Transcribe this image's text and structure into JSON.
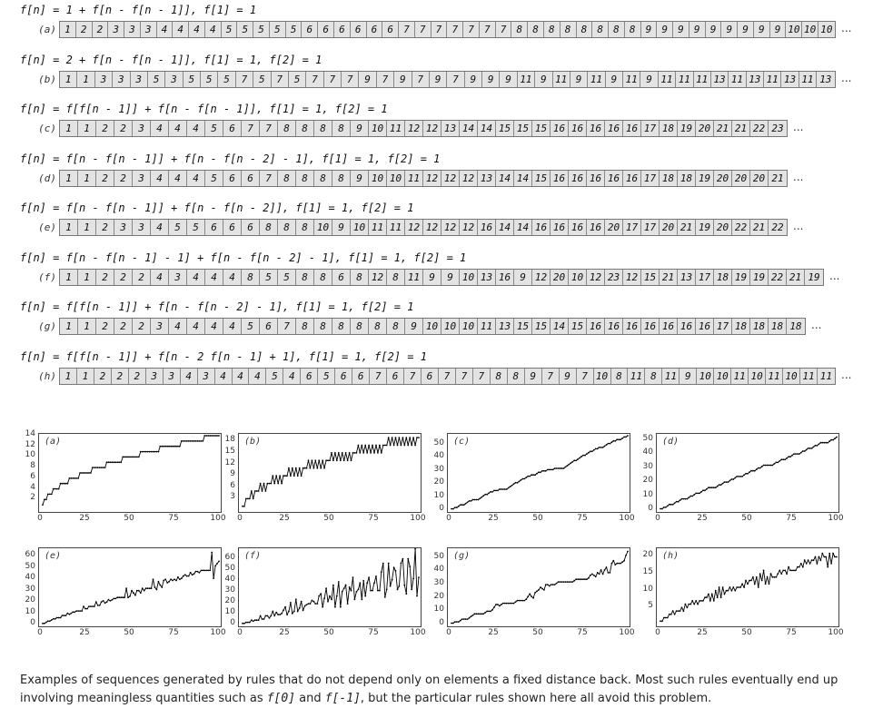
{
  "sequences": [
    {
      "label": "(a)",
      "formula": "f[n] = 1 + f[n - f[n - 1]],  f[1] = 1",
      "values": [
        "1",
        "2",
        "2",
        "3",
        "3",
        "3",
        "4",
        "4",
        "4",
        "4",
        "5",
        "5",
        "5",
        "5",
        "5",
        "6",
        "6",
        "6",
        "6",
        "6",
        "6",
        "7",
        "7",
        "7",
        "7",
        "7",
        "7",
        "7",
        "8",
        "8",
        "8",
        "8",
        "8",
        "8",
        "8",
        "8",
        "9",
        "9",
        "9",
        "9",
        "9",
        "9",
        "9",
        "9",
        "9",
        "10",
        "10",
        "10"
      ]
    },
    {
      "label": "(b)",
      "formula": "f[n] = 2 + f[n - f[n - 1]],  f[1] = 1,  f[2] = 1",
      "values": [
        "1",
        "1",
        "3",
        "3",
        "3",
        "5",
        "3",
        "5",
        "5",
        "5",
        "7",
        "5",
        "7",
        "5",
        "7",
        "7",
        "7",
        "9",
        "7",
        "9",
        "7",
        "9",
        "7",
        "9",
        "9",
        "9",
        "11",
        "9",
        "11",
        "9",
        "11",
        "9",
        "11",
        "9",
        "11",
        "11",
        "11",
        "13",
        "11",
        "13",
        "11",
        "13",
        "11",
        "13"
      ]
    },
    {
      "label": "(c)",
      "formula": "f[n] = f[f[n - 1]] + f[n - f[n - 1]],  f[1] = 1,  f[2] = 1",
      "values": [
        "1",
        "1",
        "2",
        "2",
        "3",
        "4",
        "4",
        "4",
        "5",
        "6",
        "7",
        "7",
        "8",
        "8",
        "8",
        "8",
        "9",
        "10",
        "11",
        "12",
        "12",
        "13",
        "14",
        "14",
        "15",
        "15",
        "15",
        "16",
        "16",
        "16",
        "16",
        "16",
        "17",
        "18",
        "19",
        "20",
        "21",
        "21",
        "22",
        "23"
      ]
    },
    {
      "label": "(d)",
      "formula": "f[n] = f[n - f[n - 1]] + f[n - f[n - 2] - 1],  f[1] = 1,  f[2] = 1",
      "values": [
        "1",
        "1",
        "2",
        "2",
        "3",
        "4",
        "4",
        "4",
        "5",
        "6",
        "6",
        "7",
        "8",
        "8",
        "8",
        "8",
        "9",
        "10",
        "10",
        "11",
        "12",
        "12",
        "12",
        "13",
        "14",
        "14",
        "15",
        "16",
        "16",
        "16",
        "16",
        "16",
        "17",
        "18",
        "18",
        "19",
        "20",
        "20",
        "20",
        "21"
      ]
    },
    {
      "label": "(e)",
      "formula": "f[n] = f[n - f[n - 1]] + f[n - f[n - 2]],  f[1] = 1,  f[2] = 1",
      "values": [
        "1",
        "1",
        "2",
        "3",
        "3",
        "4",
        "5",
        "5",
        "6",
        "6",
        "6",
        "8",
        "8",
        "8",
        "10",
        "9",
        "10",
        "11",
        "11",
        "12",
        "12",
        "12",
        "12",
        "16",
        "14",
        "14",
        "16",
        "16",
        "16",
        "16",
        "20",
        "17",
        "17",
        "20",
        "21",
        "19",
        "20",
        "22",
        "21",
        "22"
      ]
    },
    {
      "label": "(f)",
      "formula": "f[n] = f[n - f[n - 1] - 1] + f[n - f[n - 2] - 1],  f[1] = 1,  f[2] = 1",
      "values": [
        "1",
        "1",
        "2",
        "2",
        "2",
        "4",
        "3",
        "4",
        "4",
        "4",
        "8",
        "5",
        "5",
        "8",
        "8",
        "6",
        "8",
        "12",
        "8",
        "11",
        "9",
        "9",
        "10",
        "13",
        "16",
        "9",
        "12",
        "20",
        "10",
        "12",
        "23",
        "12",
        "15",
        "21",
        "13",
        "17",
        "18",
        "19",
        "19",
        "22",
        "21",
        "19"
      ]
    },
    {
      "label": "(g)",
      "formula": "f[n] = f[f[n - 1]] + f[n - f[n - 2] - 1],  f[1] = 1,  f[2] = 1",
      "values": [
        "1",
        "1",
        "2",
        "2",
        "2",
        "3",
        "4",
        "4",
        "4",
        "4",
        "5",
        "6",
        "7",
        "8",
        "8",
        "8",
        "8",
        "8",
        "8",
        "9",
        "10",
        "10",
        "10",
        "11",
        "13",
        "15",
        "15",
        "14",
        "15",
        "16",
        "16",
        "16",
        "16",
        "16",
        "16",
        "16",
        "17",
        "18",
        "18",
        "18",
        "18"
      ]
    },
    {
      "label": "(h)",
      "formula": "f[n] = f[f[n - 1]] + f[n - 2 f[n - 1] + 1],  f[1] = 1,  f[2] = 1",
      "values": [
        "1",
        "1",
        "2",
        "2",
        "2",
        "3",
        "3",
        "4",
        "3",
        "4",
        "4",
        "4",
        "5",
        "4",
        "6",
        "5",
        "6",
        "6",
        "7",
        "6",
        "7",
        "6",
        "7",
        "7",
        "7",
        "8",
        "8",
        "9",
        "7",
        "9",
        "7",
        "10",
        "8",
        "11",
        "8",
        "11",
        "9",
        "10",
        "10",
        "11",
        "10",
        "11",
        "10",
        "11",
        "11"
      ]
    }
  ],
  "ellipsis": "...",
  "plots": [
    {
      "label": "(a)",
      "yticks": [
        "2",
        "4",
        "6",
        "8",
        "10",
        "12",
        "14"
      ],
      "ylim": [
        0,
        14
      ],
      "xticks": [
        "0",
        "25",
        "50",
        "75",
        "100"
      ],
      "color": "#000000"
    },
    {
      "label": "(b)",
      "yticks": [
        "3",
        "6",
        "9",
        "12",
        "15",
        "18"
      ],
      "ylim": [
        0,
        19.5
      ],
      "xticks": [
        "0",
        "25",
        "50",
        "75",
        "100"
      ],
      "color": "#000000"
    },
    {
      "label": "(c)",
      "yticks": [
        "0",
        "10",
        "20",
        "30",
        "40",
        "50"
      ],
      "ylim": [
        0,
        57
      ],
      "xticks": [
        "0",
        "25",
        "50",
        "75",
        "100"
      ],
      "color": "#000000"
    },
    {
      "label": "(d)",
      "yticks": [
        "0",
        "10",
        "20",
        "30",
        "40",
        "50"
      ],
      "ylim": [
        0,
        53
      ],
      "xticks": [
        "0",
        "25",
        "50",
        "75",
        "100"
      ],
      "color": "#000000"
    },
    {
      "label": "(e)",
      "yticks": [
        "0",
        "10",
        "20",
        "30",
        "40",
        "50",
        "60"
      ],
      "ylim": [
        0,
        66
      ],
      "xticks": [
        "0",
        "25",
        "50",
        "75",
        "100"
      ],
      "color": "#000000"
    },
    {
      "label": "(f)",
      "yticks": [
        "0",
        "10",
        "20",
        "30",
        "40",
        "50",
        "60"
      ],
      "ylim": [
        0,
        68
      ],
      "xticks": [
        "0",
        "25",
        "50",
        "75",
        "100"
      ],
      "color": "#000000"
    },
    {
      "label": "(g)",
      "yticks": [
        "0",
        "10",
        "20",
        "30",
        "40",
        "50"
      ],
      "ylim": [
        0,
        56
      ],
      "xticks": [
        "0",
        "25",
        "50",
        "75",
        "100"
      ],
      "color": "#000000"
    },
    {
      "label": "(h)",
      "yticks": [
        "5",
        "10",
        "15",
        "20"
      ],
      "ylim": [
        0,
        22
      ],
      "xticks": [
        "0",
        "25",
        "50",
        "75",
        "100"
      ],
      "color": "#000000"
    }
  ],
  "caption": {
    "part1": "Examples of sequences generated by rules that do not depend only on elements a fixed distance back. Most such rules eventually end up involving meaningless quantities such as ",
    "code1": "f[0]",
    "part2": " and ",
    "code2": "f[-1]",
    "part3": ", but the particular rules shown here all avoid this problem."
  }
}
